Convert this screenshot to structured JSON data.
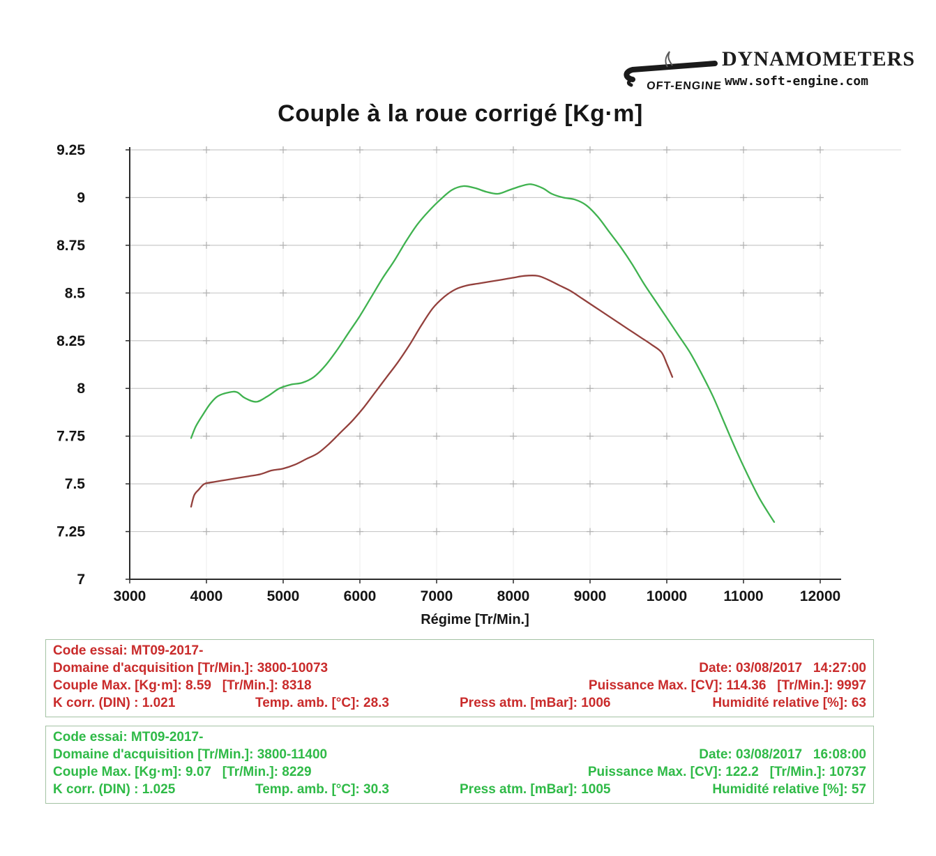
{
  "header": {
    "brand_script": "OFT-ENGINE",
    "brand_name": "DYNAMOMETERS",
    "brand_url": "www.soft-engine.com"
  },
  "chart_data": {
    "type": "line",
    "title": "Couple à la roue corrigé [Kg·m]",
    "xlabel": "Régime [Tr/Min.]",
    "ylabel": "",
    "xlim": [
      3000,
      12000
    ],
    "ylim": [
      7,
      9.25
    ],
    "x_ticks": [
      3000,
      4000,
      5000,
      6000,
      7000,
      8000,
      9000,
      10000,
      11000,
      12000
    ],
    "x_tick_labels": [
      "3000",
      "4000",
      "5000",
      "6000",
      "7000",
      "8000",
      "9000",
      "10000",
      "11000",
      "12000"
    ],
    "y_ticks": [
      7,
      7.25,
      7.5,
      7.75,
      8,
      8.25,
      8.5,
      8.75,
      9,
      9.25
    ],
    "y_tick_labels": [
      "7",
      "7.25",
      "7.5",
      "7.75",
      "8",
      "8.25",
      "8.5",
      "8.75",
      "9",
      "9.25"
    ],
    "grid": true,
    "legend": "none",
    "series": [
      {
        "id": "red",
        "color": "#93403c",
        "points": [
          [
            3800,
            7.38
          ],
          [
            3840,
            7.44
          ],
          [
            3900,
            7.47
          ],
          [
            3975,
            7.5
          ],
          [
            4100,
            7.51
          ],
          [
            4250,
            7.52
          ],
          [
            4400,
            7.53
          ],
          [
            4550,
            7.54
          ],
          [
            4700,
            7.55
          ],
          [
            4850,
            7.57
          ],
          [
            5000,
            7.58
          ],
          [
            5150,
            7.6
          ],
          [
            5300,
            7.63
          ],
          [
            5450,
            7.66
          ],
          [
            5600,
            7.71
          ],
          [
            5750,
            7.77
          ],
          [
            5900,
            7.83
          ],
          [
            6050,
            7.9
          ],
          [
            6200,
            7.98
          ],
          [
            6350,
            8.06
          ],
          [
            6500,
            8.14
          ],
          [
            6650,
            8.23
          ],
          [
            6800,
            8.33
          ],
          [
            6950,
            8.42
          ],
          [
            7100,
            8.48
          ],
          [
            7250,
            8.52
          ],
          [
            7400,
            8.54
          ],
          [
            7550,
            8.55
          ],
          [
            7700,
            8.56
          ],
          [
            7850,
            8.57
          ],
          [
            8000,
            8.58
          ],
          [
            8150,
            8.59
          ],
          [
            8318,
            8.59
          ],
          [
            8450,
            8.57
          ],
          [
            8600,
            8.54
          ],
          [
            8750,
            8.51
          ],
          [
            8900,
            8.47
          ],
          [
            9050,
            8.43
          ],
          [
            9200,
            8.39
          ],
          [
            9350,
            8.35
          ],
          [
            9500,
            8.31
          ],
          [
            9650,
            8.27
          ],
          [
            9800,
            8.23
          ],
          [
            9930,
            8.19
          ],
          [
            10000,
            8.13
          ],
          [
            10073,
            8.06
          ]
        ]
      },
      {
        "id": "green",
        "color": "#3fb24f",
        "points": [
          [
            3800,
            7.74
          ],
          [
            3860,
            7.8
          ],
          [
            3950,
            7.86
          ],
          [
            4050,
            7.92
          ],
          [
            4150,
            7.96
          ],
          [
            4300,
            7.98
          ],
          [
            4400,
            7.98
          ],
          [
            4500,
            7.95
          ],
          [
            4650,
            7.93
          ],
          [
            4800,
            7.96
          ],
          [
            4950,
            8.0
          ],
          [
            5100,
            8.02
          ],
          [
            5250,
            8.03
          ],
          [
            5400,
            8.06
          ],
          [
            5550,
            8.12
          ],
          [
            5700,
            8.2
          ],
          [
            5850,
            8.29
          ],
          [
            6000,
            8.38
          ],
          [
            6150,
            8.48
          ],
          [
            6300,
            8.58
          ],
          [
            6450,
            8.67
          ],
          [
            6600,
            8.77
          ],
          [
            6750,
            8.86
          ],
          [
            6900,
            8.93
          ],
          [
            7050,
            8.99
          ],
          [
            7200,
            9.04
          ],
          [
            7350,
            9.06
          ],
          [
            7500,
            9.05
          ],
          [
            7650,
            9.03
          ],
          [
            7800,
            9.02
          ],
          [
            7950,
            9.04
          ],
          [
            8100,
            9.06
          ],
          [
            8229,
            9.07
          ],
          [
            8380,
            9.05
          ],
          [
            8500,
            9.02
          ],
          [
            8650,
            9.0
          ],
          [
            8800,
            8.99
          ],
          [
            8950,
            8.96
          ],
          [
            9100,
            8.9
          ],
          [
            9250,
            8.82
          ],
          [
            9400,
            8.74
          ],
          [
            9550,
            8.65
          ],
          [
            9700,
            8.55
          ],
          [
            9850,
            8.46
          ],
          [
            10000,
            8.37
          ],
          [
            10150,
            8.28
          ],
          [
            10300,
            8.19
          ],
          [
            10450,
            8.08
          ],
          [
            10600,
            7.96
          ],
          [
            10750,
            7.82
          ],
          [
            10900,
            7.68
          ],
          [
            11050,
            7.55
          ],
          [
            11200,
            7.43
          ],
          [
            11320,
            7.35
          ],
          [
            11400,
            7.3
          ]
        ]
      }
    ]
  },
  "runs": [
    {
      "code_essai": "Code essai: MT09-2017-",
      "domaine": "Domaine d'acquisition [Tr/Min.]: 3800-10073",
      "date": "Date: 03/08/2017   14:27:00",
      "couple_max": "Couple Max. [Kg·m]: 8.59   [Tr/Min.]: 8318",
      "puissance_max": "Puissance Max. [CV]: 114.36   [Tr/Min.]: 9997",
      "k_corr": "K corr. (DIN) : 1.021",
      "temp_amb": "Temp. amb. [°C]: 28.3",
      "press_atm": "Press atm. [mBar]: 1006",
      "humidite": "Humidité relative [%]: 63"
    },
    {
      "code_essai": "Code essai: MT09-2017-",
      "domaine": "Domaine d'acquisition [Tr/Min.]: 3800-11400",
      "date": "Date: 03/08/2017   16:08:00",
      "couple_max": "Couple Max. [Kg·m]: 9.07   [Tr/Min.]: 8229",
      "puissance_max": "Puissance Max. [CV]: 122.2   [Tr/Min.]: 10737",
      "k_corr": "K corr. (DIN) : 1.025",
      "temp_amb": "Temp. amb. [°C]: 30.3",
      "press_atm": "Press atm. [mBar]: 1005",
      "humidite": "Humidité relative [%]: 57"
    }
  ]
}
